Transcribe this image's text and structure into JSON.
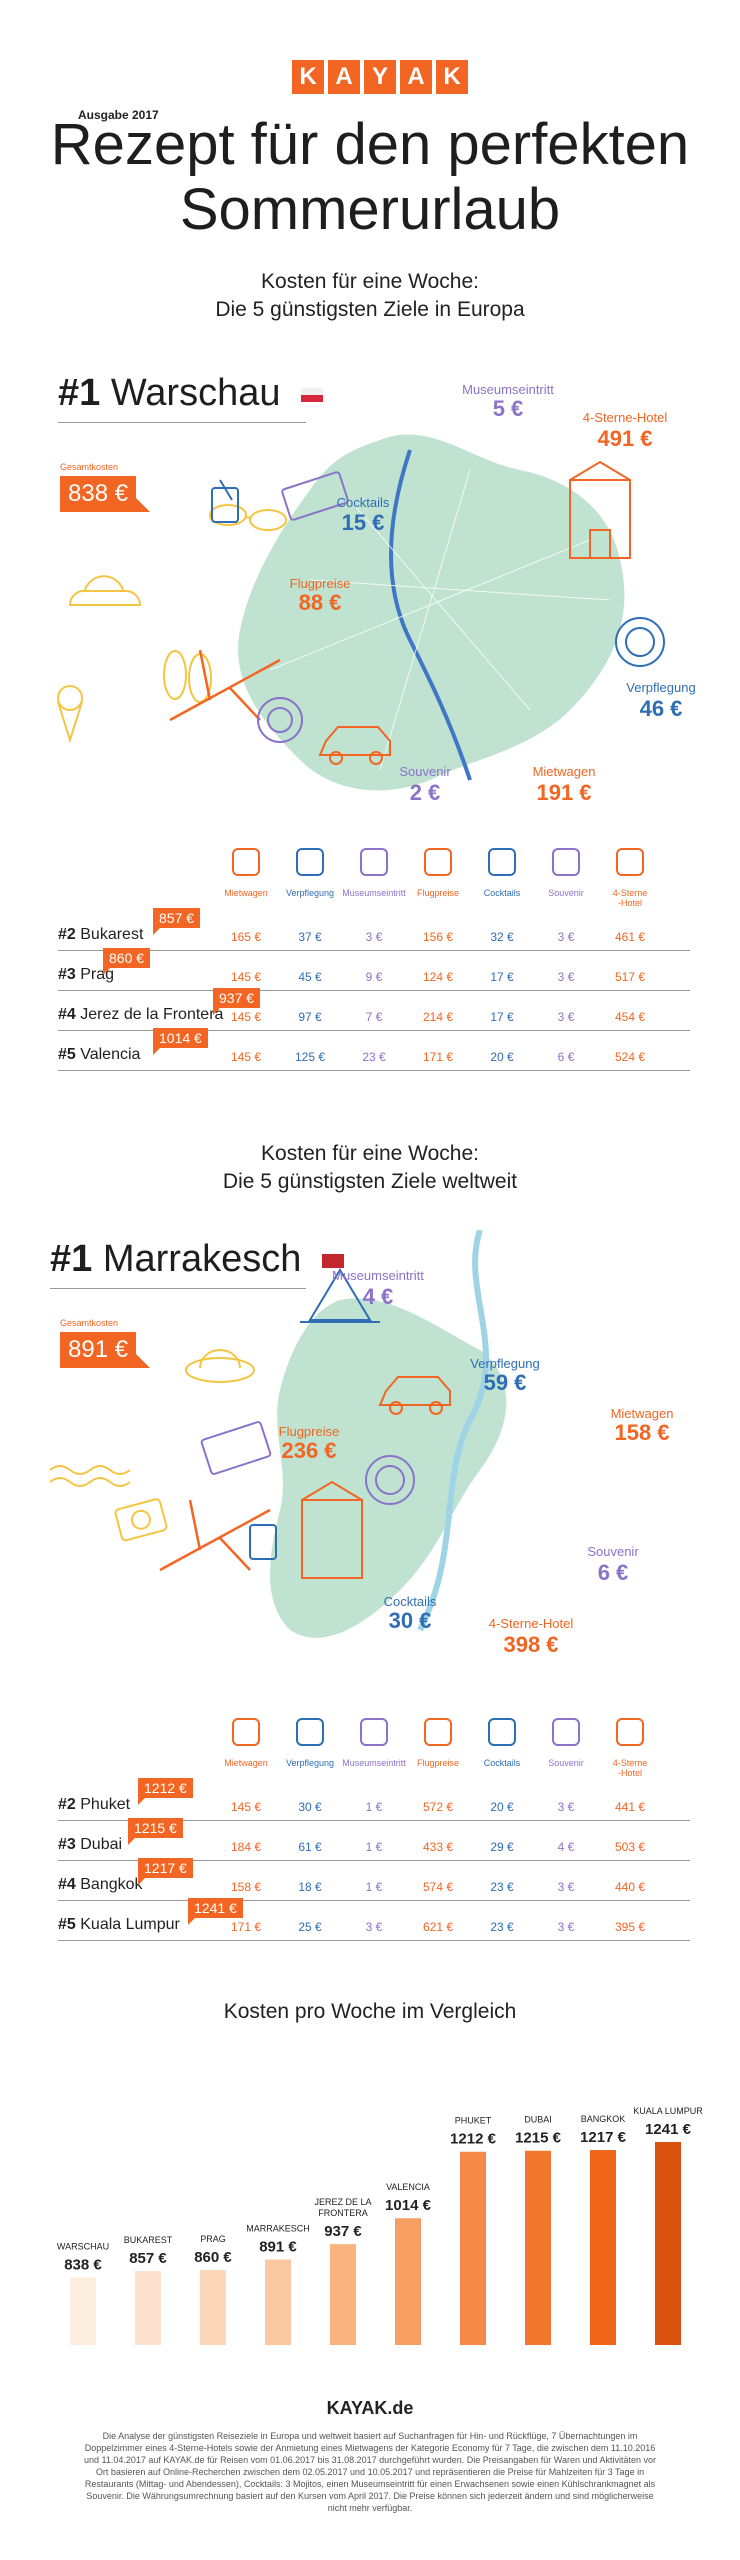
{
  "header": {
    "logo_letters": [
      "K",
      "A",
      "Y",
      "A",
      "K"
    ],
    "edition": "Ausgabe 2017",
    "title_line1": "Rezept für den perfekten",
    "title_line2": "Sommerurlaub"
  },
  "europe": {
    "subhead_line1": "Kosten für eine Woche:",
    "subhead_line2": "Die 5 günstigsten Ziele in Europa",
    "rank": "#1",
    "city": "Warschau",
    "total_label": "Gesamtkosten",
    "total": "838 €",
    "costs": {
      "museum_label": "Museumseintritt",
      "museum": "5 €",
      "hotel_label": "4-Sterne-Hotel",
      "hotel": "491 €",
      "cocktails_label": "Cocktails",
      "cocktails": "15 €",
      "flight_label": "Flugpreise",
      "flight": "88 €",
      "food_label": "Verpflegung",
      "food": "46 €",
      "souvenir_label": "Souvenir",
      "souvenir": "2 €",
      "car_label": "Mietwagen",
      "car": "191 €"
    },
    "table_headers": [
      "Mietwagen",
      "Verpflegung",
      "Museumseintritt",
      "Flugpreise",
      "Cocktails",
      "Souvenir",
      "4-Sterne\n-Hotel"
    ],
    "rows": [
      {
        "rank": "#2",
        "city": "Bukarest",
        "total": "857 €",
        "values": [
          "165 €",
          "37 €",
          "3 €",
          "156 €",
          "32 €",
          "3 €",
          "461 €"
        ]
      },
      {
        "rank": "#3",
        "city": "Prag",
        "total": "860 €",
        "values": [
          "145 €",
          "45 €",
          "9 €",
          "124 €",
          "17 €",
          "3 €",
          "517 €"
        ]
      },
      {
        "rank": "#4",
        "city": "Jerez de la Frontera",
        "total": "937 €",
        "values": [
          "145 €",
          "97 €",
          "7 €",
          "214 €",
          "17 €",
          "3 €",
          "454 €"
        ]
      },
      {
        "rank": "#5",
        "city": "Valencia",
        "total": "1014 €",
        "values": [
          "145 €",
          "125 €",
          "23 €",
          "171 €",
          "20 €",
          "6 €",
          "524 €"
        ]
      }
    ]
  },
  "world": {
    "subhead_line1": "Kosten für eine Woche:",
    "subhead_line2": "Die 5 günstigsten Ziele weltweit",
    "rank": "#1",
    "city": "Marrakesch",
    "total_label": "Gesamtkosten",
    "total": "891 €",
    "costs": {
      "museum_label": "Museumseintritt",
      "museum": "4 €",
      "food_label": "Verpflegung",
      "food": "59 €",
      "car_label": "Mietwagen",
      "car": "158 €",
      "flight_label": "Flugpreise",
      "flight": "236 €",
      "souvenir_label": "Souvenir",
      "souvenir": "6 €",
      "cocktails_label": "Cocktails",
      "cocktails": "30 €",
      "hotel_label": "4-Sterne-Hotel",
      "hotel": "398 €"
    },
    "table_headers": [
      "Mietwagen",
      "Verpflegung",
      "Museumseintritt",
      "Flugpreise",
      "Cocktails",
      "Souvenir",
      "4-Sterne\n-Hotel"
    ],
    "rows": [
      {
        "rank": "#2",
        "city": "Phuket",
        "total": "1212 €",
        "values": [
          "145 €",
          "30 €",
          "1 €",
          "572 €",
          "20 €",
          "3 €",
          "441 €"
        ]
      },
      {
        "rank": "#3",
        "city": "Dubai",
        "total": "1215 €",
        "values": [
          "184 €",
          "61 €",
          "1 €",
          "433 €",
          "29 €",
          "4 €",
          "503 €"
        ]
      },
      {
        "rank": "#4",
        "city": "Bangkok",
        "total": "1217 €",
        "values": [
          "158 €",
          "18 €",
          "1 €",
          "574 €",
          "23 €",
          "3 €",
          "440 €"
        ]
      },
      {
        "rank": "#5",
        "city": "Kuala Lumpur",
        "total": "1241 €",
        "values": [
          "171 €",
          "25 €",
          "3 €",
          "621 €",
          "23 €",
          "3 €",
          "395 €"
        ]
      }
    ]
  },
  "chart_data": {
    "type": "bar",
    "title": "Kosten pro Woche im Vergleich",
    "categories": [
      "WARSCHAU",
      "BUKAREST",
      "PRAG",
      "MARRAKESCH",
      "JEREZ DE LA FRONTERA",
      "VALENCIA",
      "PHUKET",
      "DUBAI",
      "BANGKOK",
      "KUALA LUMPUR"
    ],
    "values": [
      838,
      857,
      860,
      891,
      937,
      1014,
      1212,
      1215,
      1217,
      1241
    ],
    "value_labels": [
      "838 €",
      "857 €",
      "860 €",
      "891 €",
      "937 €",
      "1014 €",
      "1212 €",
      "1215 €",
      "1217 €",
      "1241 €"
    ],
    "colors": [
      "#fdeee0",
      "#fde3cf",
      "#fcd6b9",
      "#fbc8a2",
      "#f9b381",
      "#f79e62",
      "#f58a47",
      "#f3762f",
      "#ee6419",
      "#d9530e"
    ],
    "xlabel": "",
    "ylabel": "",
    "grid": false
  },
  "footer": {
    "logo": "KAYAK.de",
    "note": "Die Analyse der günstigsten Reiseziele in Europa und weltweit basiert auf Suchanfragen für Hin- und Rückflüge, 7 Übernachtungen im Doppelzimmer eines 4-Sterne-Hotels sowie der Anmietung eines Mietwagens der Kategorie Economy für 7 Tage, die zwischen dem 11.10.2016 und 11.04.2017 auf KAYAK.de für Reisen vom 01.06.2017 bis 31.08.2017 durchgeführt wurden. Die Preisangaben für Waren und Aktivitäten vor Ort basieren auf Online-Recherchen zwischen dem 02.05.2017 und 10.05.2017 und repräsentieren die Preise für Mahlzeiten für 3 Tage in Restaurants (Mittag- und Abendessen), Cocktails: 3 Mojitos, einen Museumseintritt für einen Erwachsenen sowie einen Kühlschrankmagnet als Souvenir. Die Währungsumrechnung basiert auf den Kursen vom April 2017. Die Preise können sich jederzeit ändern und sind möglicherweise nicht mehr verfügbar."
  },
  "colors": {
    "accent": "#f26522",
    "blue": "#2f6db5",
    "purple": "#8a73c9",
    "map": "#bfe3d0",
    "flag_red": "#d7263d"
  }
}
